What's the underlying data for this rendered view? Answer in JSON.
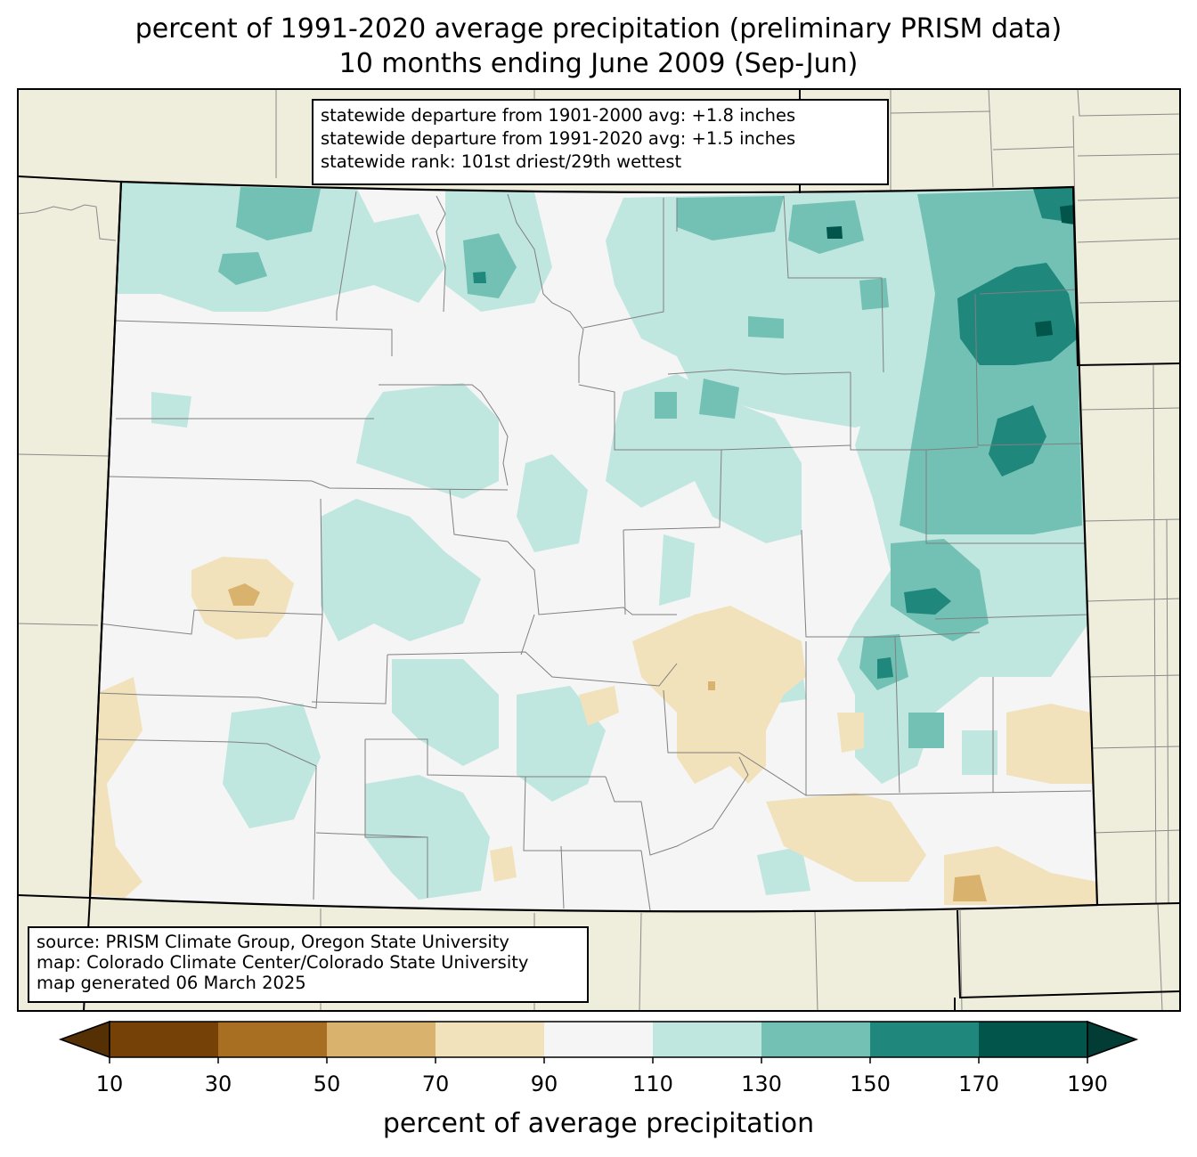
{
  "title": {
    "line1": "percent of 1991-2020 average precipitation (preliminary PRISM data)",
    "line2": "10 months ending June 2009 (Sep-Jun)"
  },
  "stats": {
    "line1": "statewide departure from 1901-2000 avg: +1.8 inches",
    "line2": "statewide departure from 1991-2020 avg: +1.5 inches",
    "line3": "statewide rank: 101st driest/29th wettest"
  },
  "source": {
    "line1": "source: PRISM Climate Group, Oregon State University",
    "line2": "map: Colorado Climate Center/Colorado State University",
    "line3": "map generated 06 March 2025"
  },
  "colorbar": {
    "label": "percent of average precipitation",
    "ticks": [
      "10",
      "30",
      "50",
      "70",
      "90",
      "110",
      "130",
      "150",
      "170",
      "190"
    ],
    "colors": [
      "#764107",
      "#a86e22",
      "#d9b36d",
      "#f2e2bc",
      "#f4f5f4",
      "#bfe6df",
      "#72c1b4",
      "#1f877b",
      "#01554b"
    ],
    "under_color": "#563005",
    "over_color": "#033c34"
  },
  "map_colors": {
    "land_outside": "#efeddc",
    "state_base": "#f4f5f4"
  }
}
